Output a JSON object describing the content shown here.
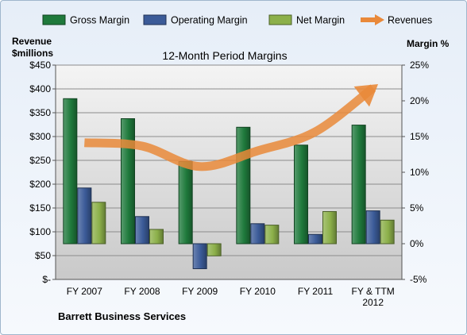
{
  "chart_data": {
    "type": "bar",
    "title": "12-Month Period Margins",
    "company": "Barrett Business Services",
    "categories": [
      "FY 2007",
      "FY 2008",
      "FY 2009",
      "FY 2010",
      "FY 2011",
      "FY & TTM 2012"
    ],
    "left_axis": {
      "label_line1": "Revenue",
      "label_line2": "$millions",
      "ylim": [
        0,
        450
      ],
      "ticks": [
        "$-",
        "$50",
        "$100",
        "$150",
        "$200",
        "$250",
        "$300",
        "$350",
        "$400",
        "$450"
      ]
    },
    "right_axis": {
      "label": "Margin %",
      "ylim": [
        -5,
        25
      ],
      "ticks": [
        "-5%",
        "0%",
        "5%",
        "10%",
        "15%",
        "20%",
        "25%"
      ]
    },
    "series": [
      {
        "name": "Gross Margin",
        "axis": "right",
        "kind": "bar",
        "color": "#1f7a3c",
        "values": [
          20.3,
          17.5,
          11.5,
          16.3,
          13.8,
          16.6
        ]
      },
      {
        "name": "Operating Margin",
        "axis": "right",
        "kind": "bar",
        "color": "#3b5b98",
        "values": [
          7.8,
          3.8,
          -3.5,
          2.8,
          1.3,
          4.6
        ]
      },
      {
        "name": "Net Margin",
        "axis": "right",
        "kind": "bar",
        "color": "#8cb04a",
        "values": [
          5.8,
          2.0,
          -1.7,
          2.6,
          4.5,
          3.3
        ]
      },
      {
        "name": "Revenues",
        "axis": "left",
        "kind": "line",
        "color": "#e9893a",
        "values": [
          287,
          280,
          237,
          270,
          310,
          402
        ]
      }
    ],
    "grid": "horizontal",
    "legend_position": "top"
  }
}
